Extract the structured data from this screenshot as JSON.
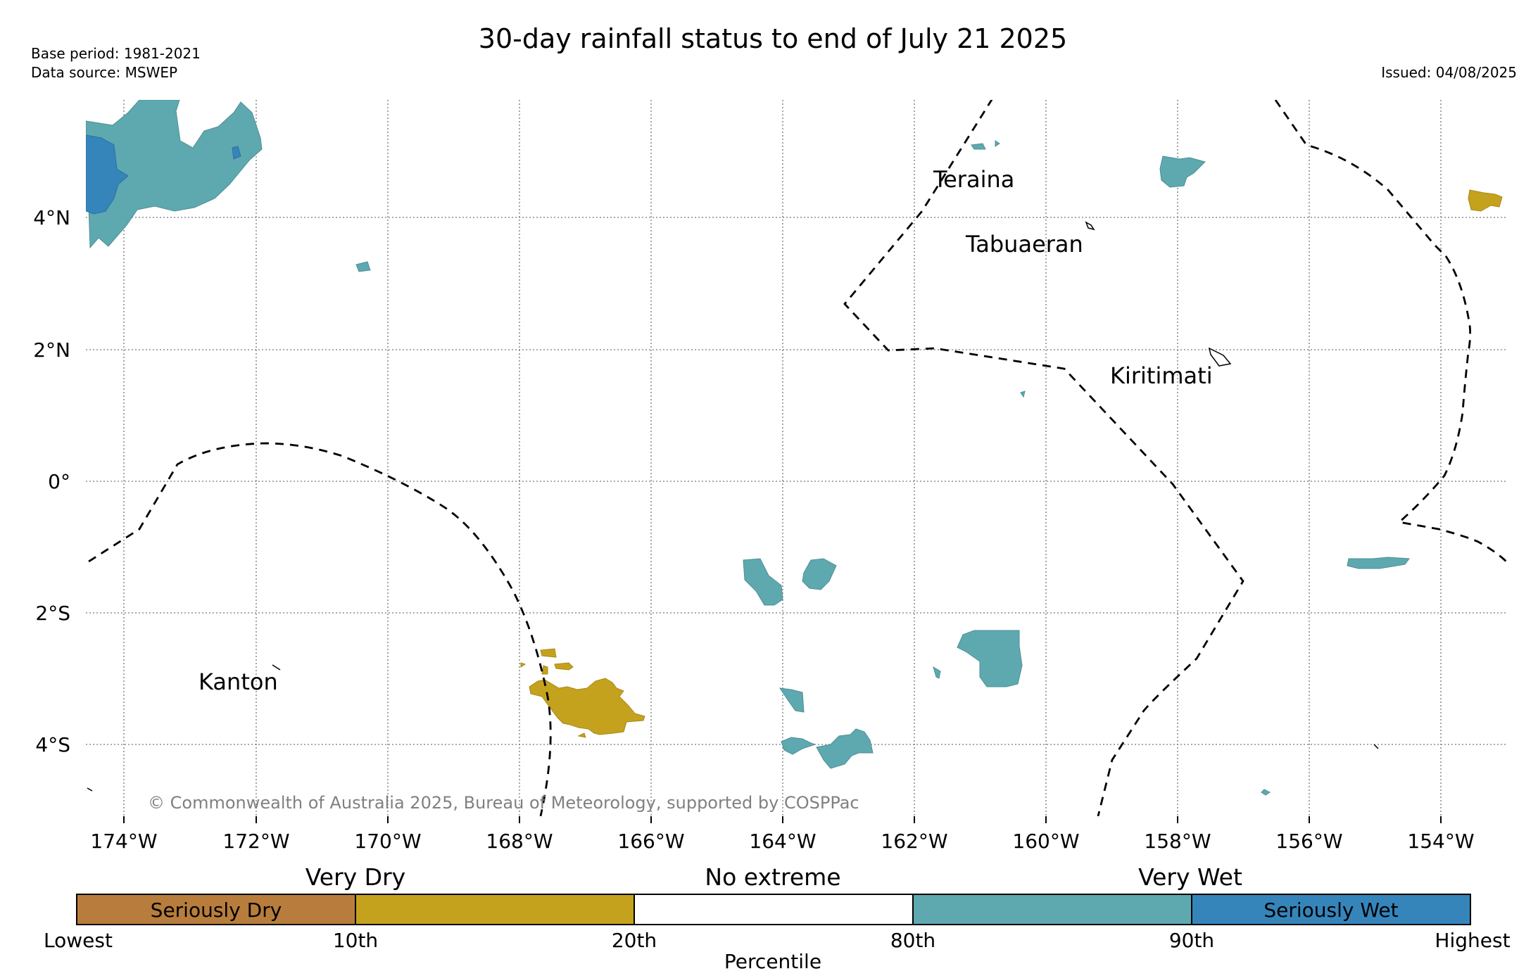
{
  "header": {
    "title": "30-day rainfall status to end of July 21 2025",
    "base_period": "Base period: 1981-2021",
    "data_source": "Data source: MSWEP",
    "issued": "Issued: 04/08/2025"
  },
  "map": {
    "copyright": "© Commonwealth of Australia 2025, Bureau of Meteorology, supported by COSPPac",
    "lon_ticks": [
      "174°W",
      "172°W",
      "170°W",
      "168°W",
      "166°W",
      "164°W",
      "162°W",
      "160°W",
      "158°W",
      "156°W",
      "154°W"
    ],
    "lat_ticks": [
      "4°N",
      "2°N",
      "0°",
      "2°S",
      "4°S"
    ],
    "places": [
      "Teraina",
      "Tabuaeran",
      "Kiritimati",
      "Kanton"
    ],
    "colors": {
      "seriously_dry": "#b87d3c",
      "very_dry": "#c4a21e",
      "no_extreme": "#ffffff",
      "very_wet": "#5ea9b0",
      "seriously_wet": "#3585bb"
    }
  },
  "legend": {
    "groups": [
      "Very Dry",
      "No extreme",
      "Very Wet"
    ],
    "segments": [
      "Seriously Dry",
      "",
      "",
      "",
      "Seriously Wet"
    ],
    "ticks": [
      "Lowest",
      "10th",
      "20th",
      "80th",
      "90th",
      "Highest"
    ],
    "axis_label": "Percentile"
  }
}
